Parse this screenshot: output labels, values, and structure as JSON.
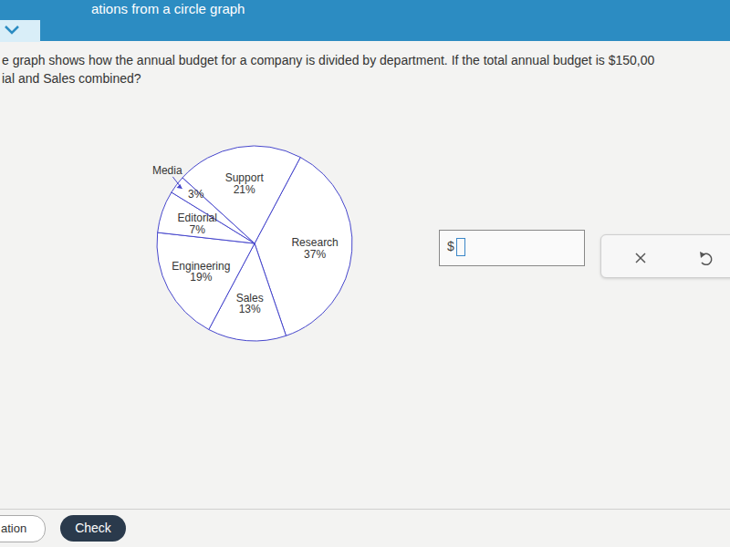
{
  "header": {
    "title": "ations from a circle graph"
  },
  "question": {
    "lines": [
      "e graph shows how the annual budget for a company is divided by department. If the total annual budget is $150,00",
      "ial and Sales combined?"
    ]
  },
  "answer": {
    "prefix": "$"
  },
  "buttons": {
    "explanation": "ation",
    "check": "Check"
  },
  "chart_data": {
    "type": "pie",
    "categories": [
      "Research",
      "Sales",
      "Engineering",
      "Editorial",
      "Media",
      "Support"
    ],
    "values": [
      37,
      13,
      19,
      7,
      3,
      21
    ],
    "value_labels": [
      "37%",
      "13%",
      "19%",
      "7%",
      "3%",
      "21%"
    ],
    "color": "#ffffff",
    "data_labels": true
  }
}
